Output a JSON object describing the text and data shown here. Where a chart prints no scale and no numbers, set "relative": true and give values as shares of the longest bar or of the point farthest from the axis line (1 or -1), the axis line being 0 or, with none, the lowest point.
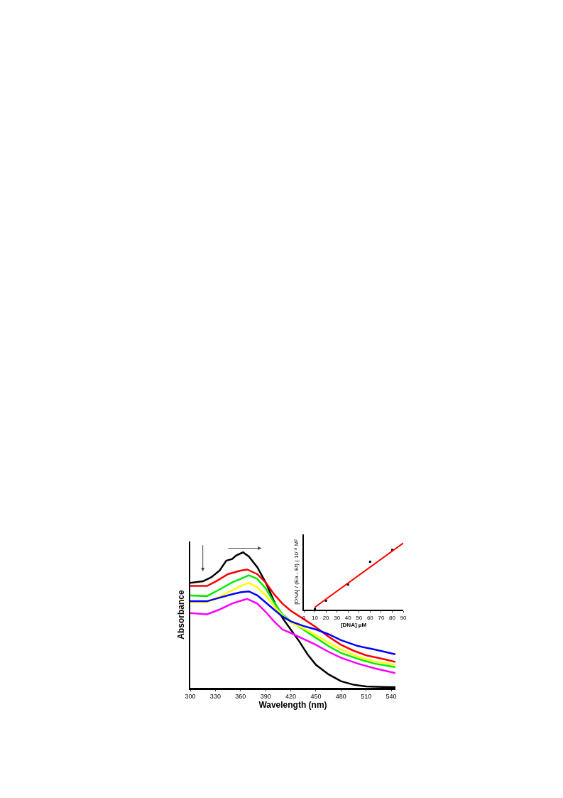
{
  "chart_data": [
    {
      "type": "line",
      "xlabel": "Wavelength (nm)",
      "ylabel": "Absorbance",
      "relative": true,
      "xlim": [
        300,
        545
      ],
      "xticks": [
        300,
        330,
        360,
        390,
        420,
        450,
        480,
        510,
        540
      ],
      "grid": false,
      "series": [
        {
          "color": "#000000",
          "x": [
            300,
            315,
            325,
            335,
            343,
            350,
            355,
            363,
            370,
            380,
            390,
            400,
            410,
            420,
            430,
            440,
            450,
            465,
            480,
            495,
            510,
            530,
            545
          ],
          "values": [
            0.774,
            0.786,
            0.816,
            0.865,
            0.938,
            0.951,
            0.977,
            1.0,
            0.969,
            0.89,
            0.778,
            0.639,
            0.517,
            0.43,
            0.344,
            0.248,
            0.17,
            0.1,
            0.049,
            0.023,
            0.01,
            0.007,
            0.005
          ]
        },
        {
          "color": "#ff0000",
          "x": [
            300,
            320,
            330,
            345,
            360,
            368,
            380,
            390,
            400,
            410,
            420,
            435,
            450,
            465,
            480,
            495,
            510,
            530,
            545
          ],
          "values": [
            0.752,
            0.752,
            0.783,
            0.839,
            0.865,
            0.873,
            0.839,
            0.778,
            0.691,
            0.622,
            0.569,
            0.509,
            0.448,
            0.378,
            0.318,
            0.274,
            0.24,
            0.214,
            0.191
          ]
        },
        {
          "color": "#00ee00",
          "x": [
            300,
            320,
            335,
            350,
            360,
            370,
            380,
            390,
            400,
            410,
            420,
            435,
            450,
            465,
            480,
            500,
            520,
            545
          ],
          "values": [
            0.682,
            0.677,
            0.726,
            0.778,
            0.804,
            0.83,
            0.804,
            0.734,
            0.63,
            0.543,
            0.491,
            0.43,
            0.37,
            0.309,
            0.257,
            0.214,
            0.179,
            0.153
          ]
        },
        {
          "color": "#ffff00",
          "x": [
            300,
            320,
            335,
            350,
            360,
            370,
            380,
            390,
            400,
            410,
            420,
            435,
            450,
            465,
            480,
            500,
            520,
            545
          ],
          "values": [
            0.635,
            0.63,
            0.674,
            0.717,
            0.752,
            0.774,
            0.743,
            0.682,
            0.604,
            0.535,
            0.483,
            0.439,
            0.387,
            0.335,
            0.283,
            0.231,
            0.196,
            0.17
          ]
        },
        {
          "color": "#0000ff",
          "x": [
            300,
            320,
            335,
            350,
            360,
            370,
            380,
            390,
            400,
            410,
            420,
            435,
            450,
            465,
            480,
            500,
            520,
            545
          ],
          "values": [
            0.639,
            0.639,
            0.665,
            0.691,
            0.705,
            0.712,
            0.682,
            0.63,
            0.578,
            0.526,
            0.491,
            0.457,
            0.431,
            0.396,
            0.352,
            0.309,
            0.283,
            0.248
          ]
        },
        {
          "color": "#ff00ff",
          "x": [
            300,
            320,
            335,
            350,
            360,
            368,
            380,
            390,
            400,
            410,
            420,
            435,
            450,
            465,
            480,
            500,
            520,
            545
          ],
          "values": [
            0.552,
            0.543,
            0.578,
            0.622,
            0.642,
            0.656,
            0.622,
            0.561,
            0.491,
            0.431,
            0.405,
            0.361,
            0.318,
            0.266,
            0.222,
            0.179,
            0.144,
            0.109
          ]
        }
      ]
    },
    {
      "type": "line",
      "xlabel": "[DNA] µM",
      "ylabel": "[DNA] / (Ea - Ef) ( 10⁻⁸ M²",
      "relative": true,
      "xlim": [
        0,
        90
      ],
      "xticks": [
        0,
        10,
        20,
        30,
        40,
        50,
        60,
        70,
        80,
        90
      ],
      "grid": false,
      "series": [
        {
          "type": "scatter",
          "marker": "square",
          "color": "#000000",
          "x": [
            10,
            20,
            40,
            60,
            80
          ],
          "values": [
            0.012,
            0.135,
            0.377,
            0.719,
            0.896
          ]
        },
        {
          "color": "#ff0000",
          "x": [
            10,
            90
          ],
          "values": [
            0.038,
            1.0
          ]
        }
      ]
    }
  ]
}
